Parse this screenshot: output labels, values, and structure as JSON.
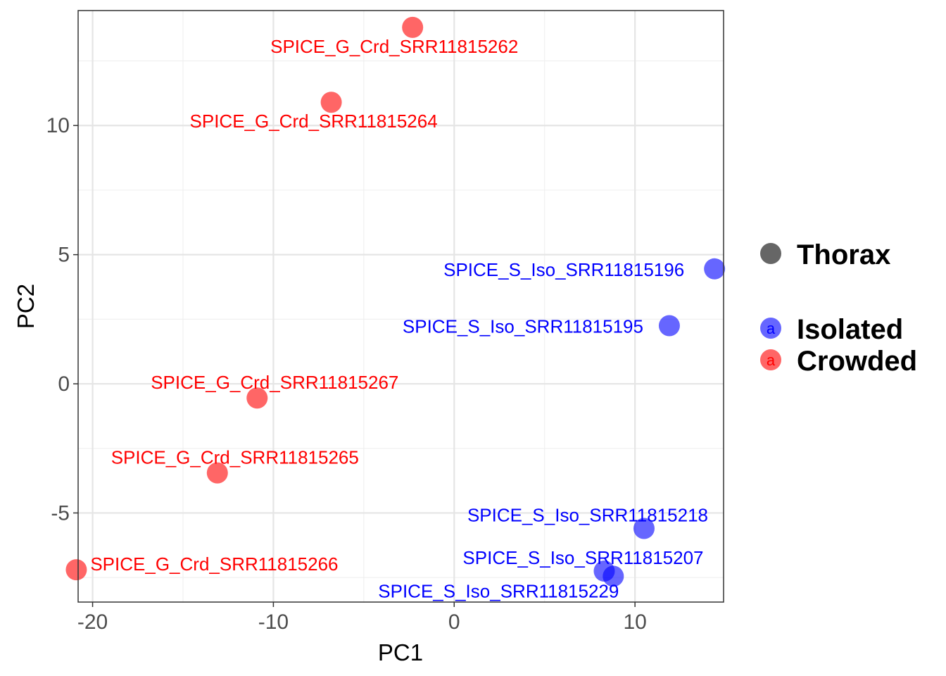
{
  "colors": {
    "isolated": "#0000ff",
    "crowded": "#ff0000",
    "shape_key": "#666666"
  },
  "legend": {
    "shape_title": "Thorax",
    "group_labels": [
      "Isolated",
      "Crowded"
    ],
    "key_glyph": "a"
  },
  "chart_data": {
    "type": "scatter",
    "xlabel": "PC1",
    "ylabel": "PC2",
    "xlim": [
      -20.8,
      14.9
    ],
    "ylim": [
      -8.45,
      14.45
    ],
    "x_ticks": [
      -20,
      -10,
      0,
      10
    ],
    "y_ticks": [
      -5,
      0,
      5,
      10
    ],
    "grid": true,
    "legend_position": "right",
    "series": [
      {
        "name": "Crowded",
        "color": "#ff0000",
        "points": [
          {
            "x": -2.3,
            "y": 13.8,
            "label": "SPICE_G_Crd_SRR11815262"
          },
          {
            "x": -6.8,
            "y": 10.9,
            "label": "SPICE_G_Crd_SRR11815264"
          },
          {
            "x": -10.9,
            "y": -0.55,
            "label": "SPICE_G_Crd_SRR11815267"
          },
          {
            "x": -13.1,
            "y": -3.45,
            "label": "SPICE_G_Crd_SRR11815265"
          },
          {
            "x": -20.9,
            "y": -7.2,
            "label": "SPICE_G_Crd_SRR11815266"
          }
        ]
      },
      {
        "name": "Isolated",
        "color": "#0000ff",
        "points": [
          {
            "x": 14.4,
            "y": 4.45,
            "label": "SPICE_S_Iso_SRR11815196"
          },
          {
            "x": 11.9,
            "y": 2.25,
            "label": "SPICE_S_Iso_SRR11815195"
          },
          {
            "x": 10.5,
            "y": -5.6,
            "label": "SPICE_S_Iso_SRR11815218"
          },
          {
            "x": 8.3,
            "y": -7.25,
            "label": "SPICE_S_Iso_SRR11815207"
          },
          {
            "x": 8.8,
            "y": -7.45,
            "label": "SPICE_S_Iso_SRR11815229"
          }
        ]
      }
    ]
  }
}
